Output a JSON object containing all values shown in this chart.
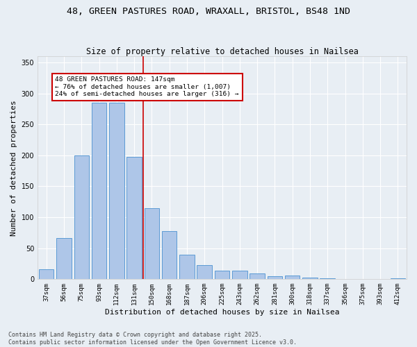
{
  "title_line1": "48, GREEN PASTURES ROAD, WRAXALL, BRISTOL, BS48 1ND",
  "title_line2": "Size of property relative to detached houses in Nailsea",
  "xlabel": "Distribution of detached houses by size in Nailsea",
  "ylabel": "Number of detached properties",
  "categories": [
    "37sqm",
    "56sqm",
    "75sqm",
    "93sqm",
    "112sqm",
    "131sqm",
    "150sqm",
    "168sqm",
    "187sqm",
    "206sqm",
    "225sqm",
    "243sqm",
    "262sqm",
    "281sqm",
    "300sqm",
    "318sqm",
    "337sqm",
    "356sqm",
    "375sqm",
    "393sqm",
    "412sqm"
  ],
  "values": [
    16,
    66,
    200,
    285,
    285,
    197,
    115,
    78,
    40,
    23,
    14,
    14,
    9,
    5,
    6,
    3,
    1,
    0,
    0,
    0,
    1
  ],
  "bar_color": "#aec6e8",
  "bar_edge_color": "#5b9bd5",
  "bar_width": 0.85,
  "vline_x": 5.5,
  "annotation_text": "48 GREEN PASTURES ROAD: 147sqm\n← 76% of detached houses are smaller (1,007)\n24% of semi-detached houses are larger (316) →",
  "annotation_box_color": "#ffffff",
  "annotation_box_edge": "#cc0000",
  "ylim": [
    0,
    360
  ],
  "yticks": [
    0,
    50,
    100,
    150,
    200,
    250,
    300,
    350
  ],
  "vline_color": "#cc0000",
  "bg_color": "#e8eef4",
  "grid_color": "#ffffff",
  "title_fontsize": 9.5,
  "subtitle_fontsize": 8.5,
  "tick_fontsize": 6.5,
  "ylabel_fontsize": 8,
  "xlabel_fontsize": 8,
  "ann_fontsize": 6.8,
  "footer_text": "Contains HM Land Registry data © Crown copyright and database right 2025.\nContains public sector information licensed under the Open Government Licence v3.0.",
  "footer_fontsize": 6.0
}
